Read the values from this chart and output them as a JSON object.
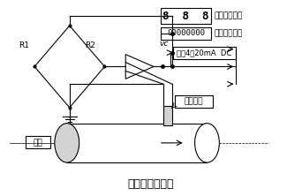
{
  "title": "结构及工作原理",
  "title_fontsize": 9,
  "bg_color": "#ffffff",
  "line_color": "#000000",
  "text_color": "#000000",
  "display_box1_text": "8  8  8",
  "display_box2_text": "00000000",
  "label1": "瞬时流量显示",
  "label2": "累积流量显示",
  "label3": "输出4～20mA  DC",
  "label4": "传感探头",
  "label5": "流体",
  "label_r1": "R1",
  "label_r2": "R2",
  "label_vc": "vc",
  "figsize": [
    3.42,
    2.22
  ],
  "dpi": 100
}
